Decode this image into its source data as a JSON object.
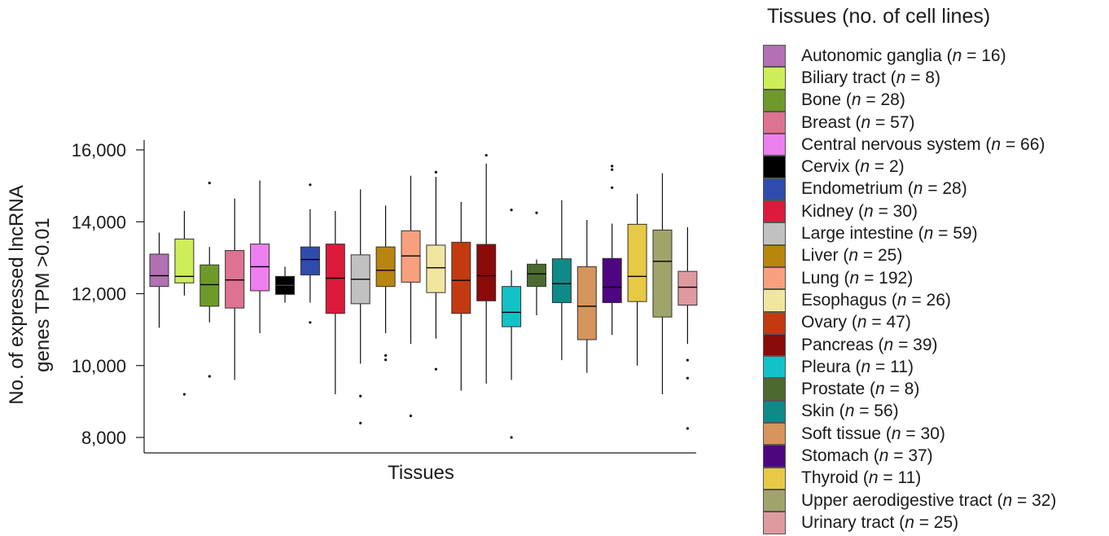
{
  "chart_data": {
    "type": "box",
    "title": "",
    "xlabel": "Tissues",
    "ylabel": [
      "No. of expressed lncRNA",
      "genes TPM >0.01"
    ],
    "ylim": [
      7700,
      16250
    ],
    "yticks": [
      8000,
      10000,
      12000,
      14000,
      16000
    ],
    "ytick_labels": [
      "8,000",
      "10,000",
      "12,000",
      "14,000",
      "16,000"
    ],
    "grid": false,
    "legend_title": "Tissues (no. of cell lines)",
    "legend_position": "right",
    "n_prefix": "(",
    "n_symbol": "n",
    "n_equals": " = ",
    "n_suffix": ")",
    "tissues": [
      {
        "name": "Autonomic ganglia",
        "n": 16,
        "color": "#b271b2",
        "whisker_low": 11050,
        "q1": 12200,
        "median": 12500,
        "q3": 13100,
        "whisker_high": 13700,
        "outliers": []
      },
      {
        "name": "Biliary tract",
        "n": 8,
        "color": "#cdee58",
        "whisker_low": 11950,
        "q1": 12300,
        "median": 12480,
        "q3": 13520,
        "whisker_high": 14300,
        "outliers": [
          9200
        ]
      },
      {
        "name": "Bone",
        "n": 28,
        "color": "#6e9a2a",
        "whisker_low": 11200,
        "q1": 11650,
        "median": 12250,
        "q3": 12800,
        "whisker_high": 13300,
        "outliers": [
          15080,
          9700
        ]
      },
      {
        "name": "Breast",
        "n": 57,
        "color": "#de7391",
        "whisker_low": 9600,
        "q1": 11600,
        "median": 12380,
        "q3": 13200,
        "whisker_high": 14650,
        "outliers": []
      },
      {
        "name": "Central nervous system",
        "n": 66,
        "color": "#ed7fee",
        "whisker_low": 10900,
        "q1": 12080,
        "median": 12750,
        "q3": 13380,
        "whisker_high": 15150,
        "outliers": []
      },
      {
        "name": "Cervix",
        "n": 2,
        "color": "#000000",
        "whisker_low": 11750,
        "q1": 11980,
        "median": 12230,
        "q3": 12480,
        "whisker_high": 12750,
        "outliers": []
      },
      {
        "name": "Endometrium",
        "n": 28,
        "color": "#2f4cac",
        "whisker_low": 11750,
        "q1": 12520,
        "median": 12950,
        "q3": 13300,
        "whisker_high": 14350,
        "outliers": [
          15030,
          11200
        ]
      },
      {
        "name": "Kidney",
        "n": 30,
        "color": "#dc1a3c",
        "whisker_low": 9200,
        "q1": 11450,
        "median": 12430,
        "q3": 13380,
        "whisker_high": 14300,
        "outliers": []
      },
      {
        "name": "Large intestine",
        "n": 59,
        "color": "#c1c1c1",
        "whisker_low": 10050,
        "q1": 11720,
        "median": 12400,
        "q3": 13080,
        "whisker_high": 14900,
        "outliers": [
          9150,
          8400
        ]
      },
      {
        "name": "Liver",
        "n": 25,
        "color": "#b8860e",
        "whisker_low": 10900,
        "q1": 12200,
        "median": 12650,
        "q3": 13300,
        "whisker_high": 14450,
        "outliers": [
          10280,
          10160
        ]
      },
      {
        "name": "Lung",
        "n": 192,
        "color": "#f8a07d",
        "whisker_low": 10600,
        "q1": 12320,
        "median": 13050,
        "q3": 13750,
        "whisker_high": 15280,
        "outliers": [
          8600
        ]
      },
      {
        "name": "Esophagus",
        "n": 26,
        "color": "#f0e69e",
        "whisker_low": 10750,
        "q1": 12030,
        "median": 12720,
        "q3": 13350,
        "whisker_high": 15250,
        "outliers": [
          15380,
          9900
        ]
      },
      {
        "name": "Ovary",
        "n": 47,
        "color": "#c33a10",
        "whisker_low": 9300,
        "q1": 11450,
        "median": 12370,
        "q3": 13430,
        "whisker_high": 14550,
        "outliers": []
      },
      {
        "name": "Pancreas",
        "n": 39,
        "color": "#8b0a0a",
        "whisker_low": 9500,
        "q1": 11800,
        "median": 12500,
        "q3": 13370,
        "whisker_high": 15620,
        "outliers": [
          15850
        ]
      },
      {
        "name": "Pleura",
        "n": 11,
        "color": "#12c2c6",
        "whisker_low": 9600,
        "q1": 11080,
        "median": 11480,
        "q3": 12200,
        "whisker_high": 12650,
        "outliers": [
          14330,
          8000
        ]
      },
      {
        "name": "Prostate",
        "n": 8,
        "color": "#4c6a30",
        "whisker_low": 11400,
        "q1": 12200,
        "median": 12550,
        "q3": 12820,
        "whisker_high": 12950,
        "outliers": [
          14250
        ]
      },
      {
        "name": "Skin",
        "n": 56,
        "color": "#0f8a89",
        "whisker_low": 10150,
        "q1": 11750,
        "median": 12280,
        "q3": 12970,
        "whisker_high": 14600,
        "outliers": []
      },
      {
        "name": "Soft tissue",
        "n": 30,
        "color": "#d5955c",
        "whisker_low": 9800,
        "q1": 10720,
        "median": 11650,
        "q3": 12750,
        "whisker_high": 14050,
        "outliers": []
      },
      {
        "name": "Stomach",
        "n": 37,
        "color": "#4d0680",
        "whisker_low": 10850,
        "q1": 11750,
        "median": 12180,
        "q3": 12980,
        "whisker_high": 13950,
        "outliers": [
          15550,
          15450,
          14950
        ]
      },
      {
        "name": "Thyroid",
        "n": 11,
        "color": "#e8c945",
        "whisker_low": 10000,
        "q1": 11780,
        "median": 12480,
        "q3": 13930,
        "whisker_high": 14780,
        "outliers": []
      },
      {
        "name": "Upper aerodigestive tract",
        "n": 32,
        "color": "#a1a46a",
        "whisker_low": 9200,
        "q1": 11350,
        "median": 12900,
        "q3": 13770,
        "whisker_high": 15350,
        "outliers": []
      },
      {
        "name": "Urinary tract",
        "n": 25,
        "color": "#df9aa0",
        "whisker_low": 10600,
        "q1": 11680,
        "median": 12180,
        "q3": 12620,
        "whisker_high": 13850,
        "outliers": [
          10150,
          9650,
          8250
        ]
      }
    ]
  }
}
